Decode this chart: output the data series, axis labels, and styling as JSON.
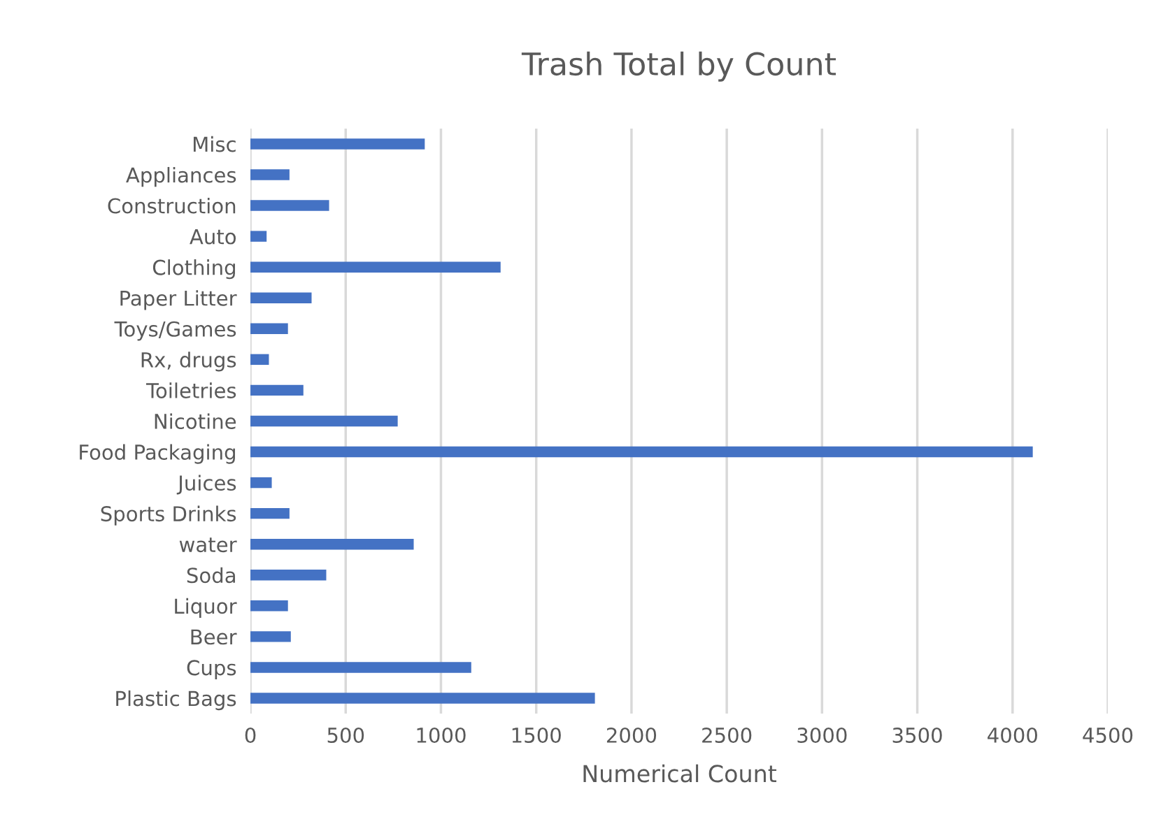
{
  "chart_data": {
    "type": "bar",
    "orientation": "horizontal",
    "title": "Trash Total by Count",
    "xlabel": "Numerical Count",
    "categories": [
      "Misc",
      "Appliances",
      "Construction",
      "Auto",
      "Clothing",
      "Paper Litter",
      "Toys/Games",
      "Rx, drugs",
      "Toiletries",
      "Nicotine",
      "Food Packaging",
      "Juices",
      "Sports Drinks",
      "water",
      "Soda",
      "Liquor",
      "Beer",
      "Cups",
      "Plastic Bags"
    ],
    "values": [
      915,
      205,
      413,
      85,
      1313,
      321,
      197,
      97,
      278,
      773,
      4106,
      112,
      205,
      857,
      398,
      197,
      212,
      1159,
      1808
    ],
    "color": "#4472c4",
    "xlim": [
      0,
      4500
    ],
    "xticks": [
      0,
      500,
      1000,
      1500,
      2000,
      2500,
      3000,
      3500,
      4000,
      4500
    ],
    "grid": "x"
  }
}
